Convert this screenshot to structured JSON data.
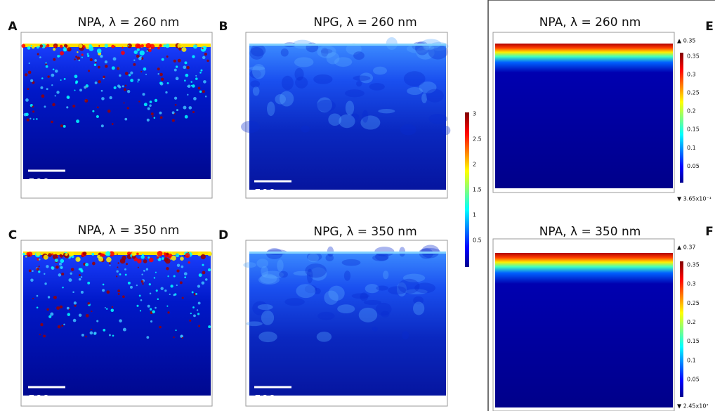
{
  "panels": [
    {
      "label": "A",
      "title": "NPA, λ = 260 nm",
      "scale_bar": "500 nm"
    },
    {
      "label": "B",
      "title": "NPG, λ = 260 nm",
      "scale_bar": "500 nm"
    },
    {
      "label": "C",
      "title": "NPA, λ = 350 nm",
      "scale_bar": "500 nm"
    },
    {
      "label": "D",
      "title": "NPG, λ = 350 nm",
      "scale_bar": "500 nm"
    },
    {
      "label": "E",
      "title": "NPA, λ = 260 nm",
      "colorbar": {
        "max": "▲ 0.35",
        "ticks": [
          "0.35",
          "0.3",
          "0.25",
          "0.2",
          "0.15",
          "0.1",
          "0.05"
        ],
        "min": "▼ 3.65x10⁻¹"
      }
    },
    {
      "label": "F",
      "title": "NPA, λ = 350 nm",
      "colorbar": {
        "max": "▲ 0.37",
        "ticks": [
          "0.35",
          "0.3",
          "0.25",
          "0.2",
          "0.15",
          "0.1",
          "0.05"
        ],
        "min": "▼ 2.45x10⁷"
      }
    }
  ],
  "shared_colorbar": {
    "ticks": [
      "3",
      "2.5",
      "2",
      "1.5",
      "1",
      "0.5"
    ]
  }
}
